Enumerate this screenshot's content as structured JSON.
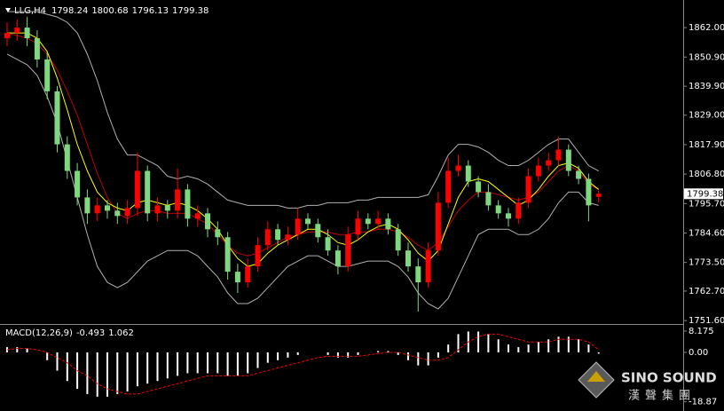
{
  "chart_data": [
    {
      "type": "candlestick",
      "symbol": "LLG,H4",
      "up_color": "#ff0000",
      "down_color": "#7fd87f",
      "ylim": [
        1750.3,
        1872.4
      ],
      "yticks": [
        {
          "value": 1862,
          "label": "1862.00"
        },
        {
          "value": 1850.9,
          "label": "1850.90"
        },
        {
          "value": 1839.9,
          "label": "1839.90"
        },
        {
          "value": 1829,
          "label": "1829.00"
        },
        {
          "value": 1817.9,
          "label": "1817.90"
        },
        {
          "value": 1806.8,
          "label": "1806.80"
        },
        {
          "value": 1795.7,
          "label": "1795.70"
        },
        {
          "value": 1784.6,
          "label": "1784.60"
        },
        {
          "value": 1773.5,
          "label": "1773.50"
        },
        {
          "value": 1762.7,
          "label": "1762.70"
        },
        {
          "value": 1751.6,
          "label": "1751.60"
        }
      ],
      "open": [
        1858,
        1860,
        1862,
        1858,
        1850,
        1838,
        1818,
        1808,
        1798,
        1792,
        1795,
        1793,
        1791,
        1794,
        1808,
        1792,
        1795,
        1793,
        1801,
        1790,
        1792,
        1786,
        1783,
        1770,
        1766,
        1772,
        1780,
        1786,
        1782,
        1784,
        1790,
        1788,
        1783,
        1778,
        1772,
        1784,
        1790,
        1788,
        1790,
        1786,
        1778,
        1772,
        1766,
        1778,
        1796,
        1808,
        1810,
        1804,
        1800,
        1795,
        1792,
        1790,
        1796,
        1806,
        1810,
        1812,
        1816,
        1808,
        1805,
        1798.24
      ],
      "high": [
        1864,
        1865,
        1866,
        1861,
        1853,
        1840,
        1821,
        1811,
        1801,
        1798,
        1797,
        1796,
        1797,
        1815,
        1810,
        1798,
        1797,
        1809,
        1803,
        1795,
        1794,
        1789,
        1785,
        1773,
        1775,
        1783,
        1789,
        1788,
        1787,
        1794,
        1792,
        1790,
        1786,
        1780,
        1787,
        1793,
        1792,
        1793,
        1792,
        1788,
        1781,
        1775,
        1781,
        1800,
        1813,
        1814,
        1812,
        1806,
        1803,
        1797,
        1794,
        1798,
        1809,
        1813,
        1815,
        1821,
        1818,
        1810,
        1807,
        1800.68
      ],
      "low": [
        1855,
        1857,
        1855,
        1847,
        1835,
        1815,
        1805,
        1795,
        1788,
        1789,
        1790,
        1788,
        1788,
        1791,
        1789,
        1789,
        1790,
        1790,
        1787,
        1787,
        1783,
        1780,
        1767,
        1762,
        1764,
        1770,
        1778,
        1780,
        1780,
        1782,
        1786,
        1781,
        1776,
        1769,
        1770,
        1782,
        1786,
        1786,
        1784,
        1776,
        1770,
        1755,
        1764,
        1776,
        1794,
        1806,
        1802,
        1798,
        1793,
        1790,
        1787,
        1788,
        1794,
        1804,
        1808,
        1810,
        1806,
        1803,
        1789,
        1796.13
      ],
      "close": [
        1860,
        1862,
        1858,
        1850,
        1838,
        1818,
        1808,
        1798,
        1792,
        1795,
        1793,
        1791,
        1794,
        1808,
        1792,
        1795,
        1793,
        1801,
        1790,
        1792,
        1786,
        1783,
        1770,
        1766,
        1772,
        1780,
        1786,
        1782,
        1784,
        1790,
        1788,
        1783,
        1778,
        1772,
        1784,
        1790,
        1788,
        1790,
        1786,
        1778,
        1772,
        1766,
        1778,
        1796,
        1808,
        1810,
        1804,
        1800,
        1795,
        1792,
        1790,
        1796,
        1806,
        1810,
        1812,
        1816,
        1808,
        1805,
        1795,
        1799.38
      ],
      "bands": [
        {
          "color": "#b0b0b0",
          "values": [
            1868,
            1868,
            1868,
            1868,
            1867,
            1866,
            1864,
            1860,
            1852,
            1842,
            1830,
            1820,
            1814,
            1814,
            1812,
            1810,
            1806,
            1805,
            1806,
            1805,
            1803,
            1800,
            1797,
            1796,
            1795,
            1795,
            1795,
            1795,
            1794,
            1794,
            1795,
            1795,
            1796,
            1796,
            1796,
            1797,
            1797,
            1798,
            1798,
            1798,
            1798,
            1798,
            1799,
            1806,
            1814,
            1818,
            1818,
            1817,
            1815,
            1812,
            1810,
            1810,
            1812,
            1815,
            1818,
            1820,
            1820,
            1815,
            1810,
            1808
          ]
        },
        {
          "color": "#b0b0b0",
          "values": [
            1852,
            1850,
            1848,
            1844,
            1836,
            1826,
            1812,
            1798,
            1784,
            1772,
            1766,
            1764,
            1766,
            1770,
            1774,
            1776,
            1778,
            1778,
            1778,
            1776,
            1772,
            1768,
            1762,
            1758,
            1758,
            1760,
            1764,
            1768,
            1772,
            1774,
            1776,
            1776,
            1774,
            1772,
            1772,
            1773,
            1774,
            1774,
            1774,
            1772,
            1768,
            1762,
            1758,
            1756,
            1760,
            1768,
            1776,
            1784,
            1786,
            1786,
            1786,
            1784,
            1784,
            1786,
            1790,
            1796,
            1800,
            1800,
            1796,
            1795
          ]
        },
        {
          "color": "#c00000",
          "values": [
            1860,
            1859,
            1858,
            1856,
            1852,
            1846,
            1838,
            1829,
            1818,
            1807,
            1798,
            1792,
            1790,
            1792,
            1793,
            1793,
            1792,
            1792,
            1792,
            1790,
            1788,
            1784,
            1780,
            1777,
            1776,
            1777,
            1779,
            1781,
            1783,
            1784,
            1785,
            1785,
            1785,
            1784,
            1784,
            1785,
            1785,
            1786,
            1786,
            1785,
            1783,
            1780,
            1778,
            1781,
            1787,
            1793,
            1797,
            1800,
            1800,
            1799,
            1798,
            1797,
            1798,
            1800,
            1804,
            1808,
            1810,
            1808,
            1803,
            1801
          ]
        },
        {
          "color": "#ffff00",
          "values": [
            1860,
            1860,
            1860,
            1858,
            1853,
            1843,
            1831,
            1818,
            1808,
            1800,
            1796,
            1794,
            1793,
            1796,
            1797,
            1796,
            1795,
            1796,
            1795,
            1793,
            1790,
            1786,
            1780,
            1775,
            1772,
            1773,
            1777,
            1780,
            1782,
            1784,
            1786,
            1786,
            1784,
            1781,
            1780,
            1782,
            1785,
            1787,
            1788,
            1786,
            1782,
            1777,
            1774,
            1778,
            1788,
            1798,
            1804,
            1805,
            1804,
            1801,
            1798,
            1795,
            1797,
            1801,
            1806,
            1810,
            1811,
            1809,
            1804,
            1801
          ]
        }
      ]
    },
    {
      "type": "macd",
      "title": "MACD(12,26,9)",
      "ylim": [
        -22.5,
        10.2
      ],
      "yticks": [
        8.175,
        {
          "value": 0,
          "label": "0.00"
        },
        -18.87
      ],
      "series": [
        {
          "color": "#ffffff",
          "values": [
            2,
            2,
            1.5,
            0,
            -3,
            -7,
            -11,
            -14,
            -16,
            -17,
            -17,
            -16,
            -15,
            -13,
            -12,
            -11,
            -10,
            -9,
            -8,
            -8,
            -8,
            -8,
            -9,
            -9,
            -8,
            -6,
            -4,
            -3,
            -2,
            -1,
            0,
            0,
            -1,
            -2,
            -2,
            -1,
            0,
            0.5,
            0.5,
            -1,
            -3,
            -5,
            -5,
            -2,
            3,
            7,
            8,
            8,
            7,
            5,
            3,
            2,
            3,
            4,
            5,
            6,
            6,
            5,
            3,
            -0.493
          ]
        },
        {
          "color": "#ff0000",
          "values": [
            1,
            1.5,
            1.5,
            1,
            0,
            -2,
            -4,
            -7,
            -9,
            -12,
            -14,
            -15,
            -16,
            -16,
            -15,
            -14,
            -13,
            -12,
            -11,
            -10,
            -9,
            -9,
            -9,
            -9,
            -9,
            -8,
            -7,
            -6,
            -5,
            -4,
            -3,
            -2,
            -1.5,
            -1.5,
            -1.5,
            -1.5,
            -1,
            -0.5,
            0,
            0,
            -1,
            -2,
            -3,
            -3,
            -2,
            1,
            4,
            6,
            7,
            7,
            6,
            5,
            4,
            4,
            4,
            5,
            5,
            5,
            4,
            1.062
          ]
        }
      ]
    }
  ],
  "logo": {
    "name": "SINO SOUND",
    "chinese": "漢聲集團"
  }
}
